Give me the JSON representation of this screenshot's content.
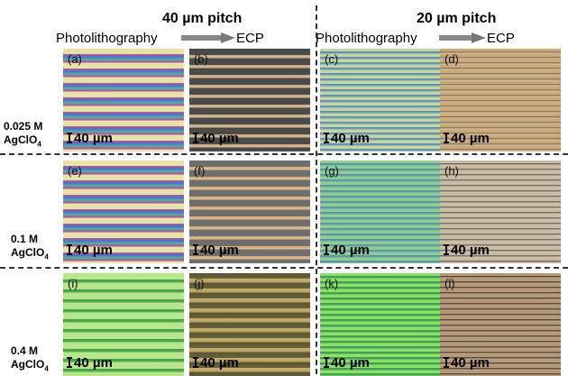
{
  "headers": {
    "left_title": "40 µm pitch",
    "right_title": "20 µm pitch",
    "left_sub_a": "Photolithography",
    "left_sub_b": "ECP",
    "right_sub_a": "Photolithography",
    "right_sub_b": "ECP"
  },
  "rows": [
    {
      "conc": "0.025 M",
      "salt": "AgClO",
      "sub": "4"
    },
    {
      "conc": "0.1 M",
      "salt": "AgClO",
      "sub": "4"
    },
    {
      "conc": "0.4 M",
      "salt": "AgClO",
      "sub": "4"
    }
  ],
  "panels": [
    {
      "label": "(a)",
      "scale": "40 µm",
      "style": "rainbow40"
    },
    {
      "label": "(b)",
      "scale": "40 µm",
      "style": "dark40"
    },
    {
      "label": "(c)",
      "scale": "40 µm",
      "style": "rainbow20"
    },
    {
      "label": "(d)",
      "scale": "40 µm",
      "style": "tan20"
    },
    {
      "label": "(e)",
      "scale": "40 µm",
      "style": "rainbow40"
    },
    {
      "label": "(f)",
      "scale": "40 µm",
      "style": "gray40"
    },
    {
      "label": "(g)",
      "scale": "40 µm",
      "style": "green20"
    },
    {
      "label": "(h)",
      "scale": "40 µm",
      "style": "lighttan20"
    },
    {
      "label": "(i)",
      "scale": "40 µm",
      "style": "green40"
    },
    {
      "label": "(j)",
      "scale": "40 µm",
      "style": "olive40"
    },
    {
      "label": "(k)",
      "scale": "40 µm",
      "style": "brightgreen20"
    },
    {
      "label": "(l)",
      "scale": "40 µm",
      "style": "brown20"
    }
  ],
  "colors": {
    "dashed_lines": "#333333"
  }
}
